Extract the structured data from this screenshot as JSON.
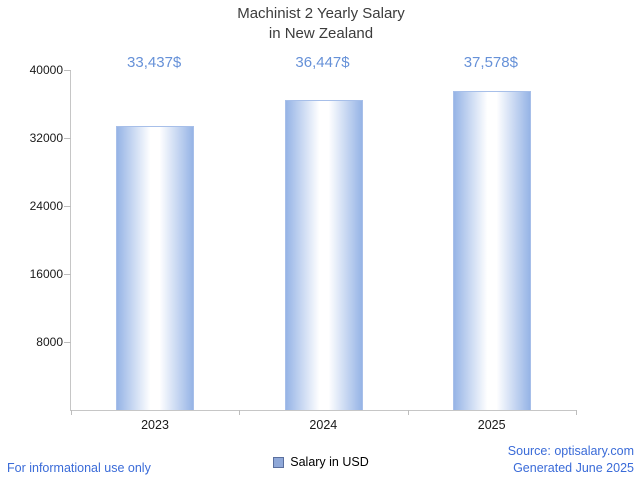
{
  "chart_data": {
    "type": "bar",
    "title": "Machinist 2 Yearly Salary in New Zealand",
    "title_line1": "Machinist 2 Yearly Salary",
    "title_line2": "in New Zealand",
    "categories": [
      "2023",
      "2024",
      "2025"
    ],
    "values": [
      33437,
      36447,
      37578
    ],
    "value_labels": [
      "33,437$",
      "36,447$",
      "37,578$"
    ],
    "series_name": "Salary in USD",
    "ylim": [
      0,
      40000
    ],
    "yticks": [
      8000,
      16000,
      24000,
      32000,
      40000
    ],
    "grid": false,
    "legend_position": "bottom",
    "colors": {
      "bar_edge": "#96b4e6",
      "bar_center": "#ffffff",
      "value_label": "#6691d8",
      "axis": "#c6c6c6"
    }
  },
  "legend": {
    "label": "Salary in USD"
  },
  "footer": {
    "disclaimer": "For informational use only",
    "source": "Source: optisalary.com",
    "generated": "Generated June 2025"
  }
}
